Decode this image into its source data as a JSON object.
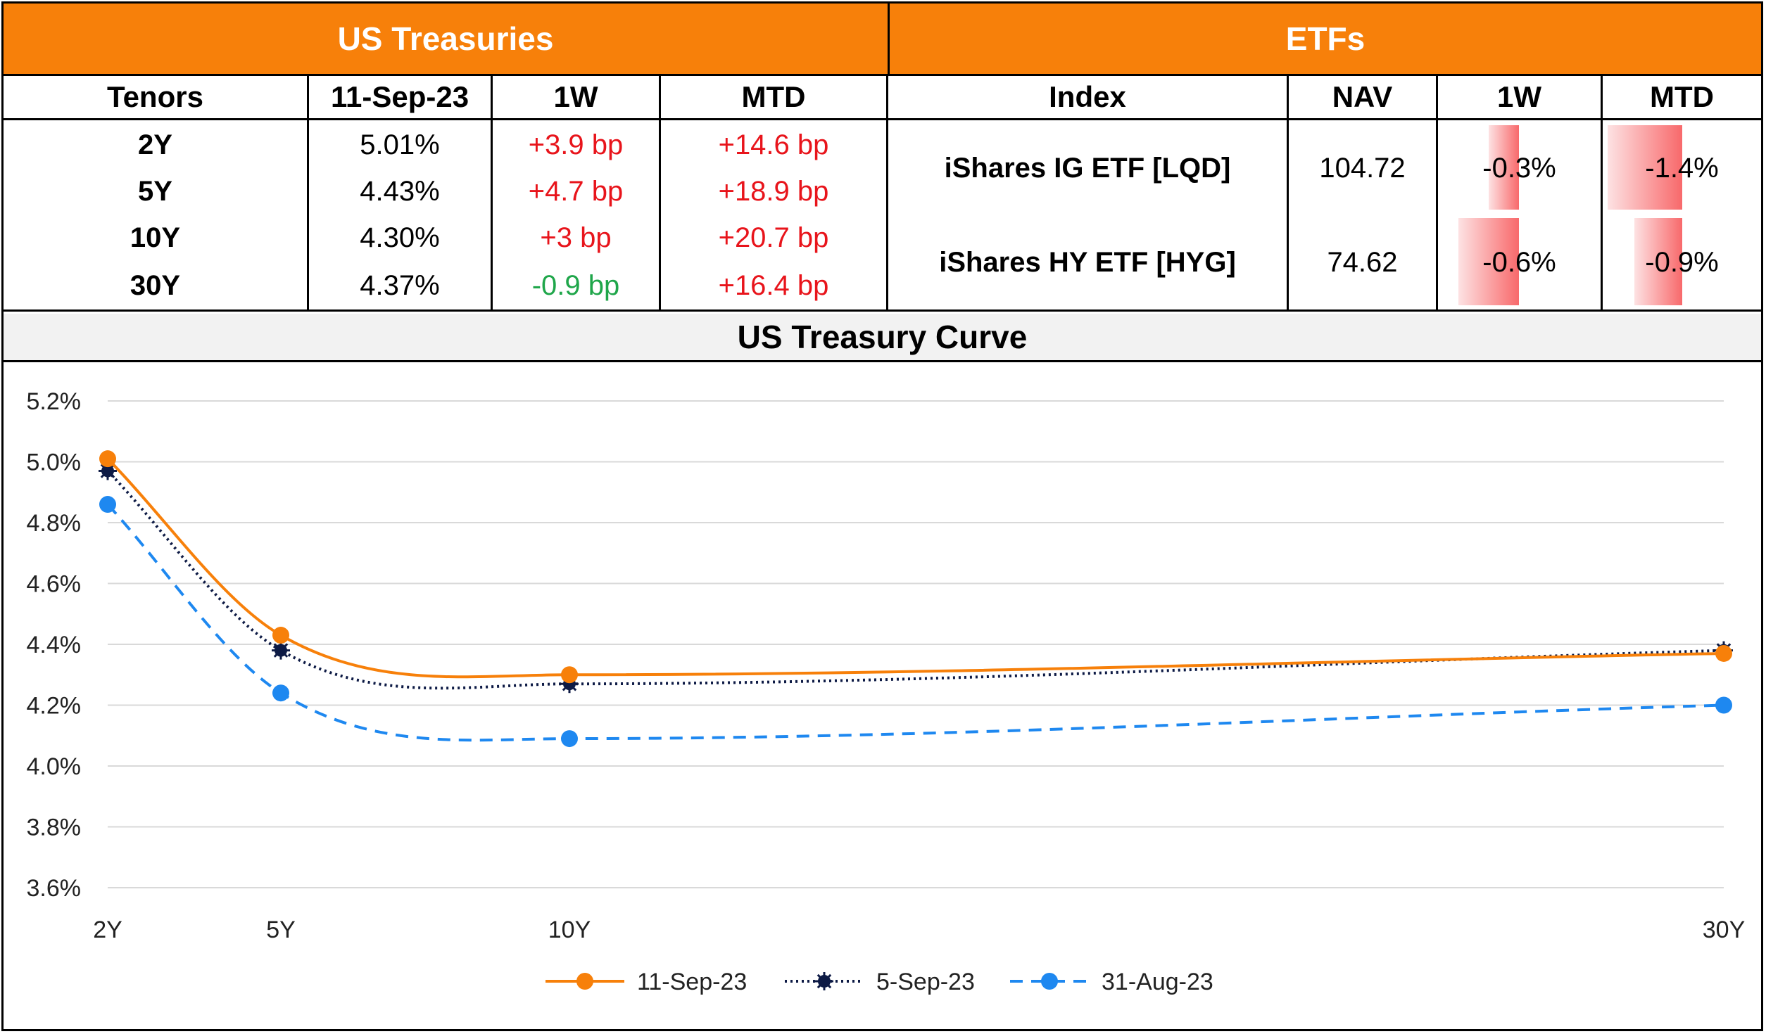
{
  "treasuries": {
    "title": "US Treasuries",
    "headers": [
      "Tenors",
      "11-Sep-23",
      "1W",
      "MTD"
    ],
    "rows": [
      {
        "tenor": "2Y",
        "yield": "5.01%",
        "w1": "+3.9 bp",
        "w1_sign": "pos",
        "mtd": "+14.6 bp"
      },
      {
        "tenor": "5Y",
        "yield": "4.43%",
        "w1": "+4.7 bp",
        "w1_sign": "pos",
        "mtd": "+18.9 bp"
      },
      {
        "tenor": "10Y",
        "yield": "4.30%",
        "w1": "+3 bp",
        "w1_sign": "pos",
        "mtd": "+20.7 bp"
      },
      {
        "tenor": "30Y",
        "yield": "4.37%",
        "w1": "-0.9 bp",
        "w1_sign": "neg",
        "mtd": "+16.4 bp"
      }
    ]
  },
  "etfs": {
    "title": "ETFs",
    "headers": [
      "Index",
      "NAV",
      "1W",
      "MTD"
    ],
    "rows": [
      {
        "name": "iShares IG ETF [LQD]",
        "nav": "104.72",
        "w1": "-0.3%",
        "w1_value": -0.3,
        "mtd": "-1.4%",
        "mtd_value": -1.4
      },
      {
        "name": "iShares HY ETF [HYG]",
        "nav": "74.62",
        "w1": "-0.6%",
        "w1_value": -0.6,
        "mtd": "-0.9%",
        "mtd_value": -0.9
      }
    ]
  },
  "colors": {
    "header_orange": "#F7800A",
    "positive_red": "#E8141B",
    "negative_green": "#1FA64A",
    "databar_red": "#F8696B",
    "series_orange": "#F7800A",
    "series_navy": "#0D1A45",
    "series_blue": "#1E88F0"
  },
  "chart_data": {
    "type": "line",
    "title": "US Treasury Curve",
    "x_tenor_years": [
      2,
      5,
      10,
      30
    ],
    "categories": [
      "2Y",
      "5Y",
      "10Y",
      "30Y"
    ],
    "ylim": [
      3.6,
      5.2
    ],
    "yticks": [
      "3.6%",
      "3.8%",
      "4.0%",
      "4.2%",
      "4.4%",
      "4.6%",
      "4.8%",
      "5.0%",
      "5.2%"
    ],
    "grid": true,
    "legend_position": "bottom",
    "series": [
      {
        "name": "11-Sep-23",
        "values": [
          5.01,
          4.43,
          4.3,
          4.37
        ],
        "style": "solid"
      },
      {
        "name": "5-Sep-23",
        "values": [
          4.97,
          4.38,
          4.27,
          4.38
        ],
        "style": "dotted"
      },
      {
        "name": "31-Aug-23",
        "values": [
          4.86,
          4.24,
          4.09,
          4.2
        ],
        "style": "dashed"
      }
    ]
  }
}
